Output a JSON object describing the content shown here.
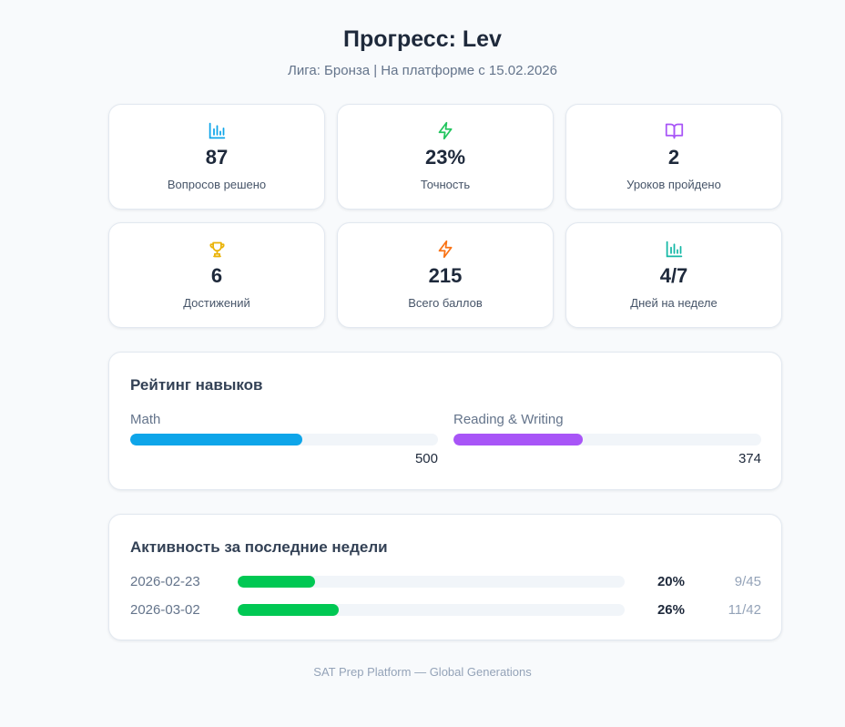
{
  "header": {
    "title": "Прогресс: Lev",
    "subtitle": "Лига: Бронза | На платформе с 15.02.2026"
  },
  "stats": [
    {
      "icon": "bar-chart-icon",
      "value": "87",
      "label": "Вопросов решено",
      "color": "#0ea5e9"
    },
    {
      "icon": "lightning-icon",
      "value": "23%",
      "label": "Точность",
      "color": "#22c55e"
    },
    {
      "icon": "book-icon",
      "value": "2",
      "label": "Уроков пройдено",
      "color": "#a855f7"
    },
    {
      "icon": "trophy-icon",
      "value": "6",
      "label": "Достижений",
      "color": "#eab308"
    },
    {
      "icon": "lightning-icon",
      "value": "215",
      "label": "Всего баллов",
      "color": "#f97316"
    },
    {
      "icon": "bar-chart-icon",
      "value": "4/7",
      "label": "Дней на неделе",
      "color": "#14b8a6"
    }
  ],
  "skills": {
    "title": "Рейтинг навыков",
    "items": [
      {
        "name": "Math",
        "score": "500",
        "fill_fraction": 0.56,
        "color": "#0ea5e9"
      },
      {
        "name": "Reading & Writing",
        "score": "374",
        "fill_fraction": 0.42,
        "color": "#a855f7"
      }
    ]
  },
  "activity": {
    "title": "Активность за последние недели",
    "rows": [
      {
        "date": "2026-02-23",
        "percent": "20%",
        "count": "9/45",
        "fill_fraction": 0.2
      },
      {
        "date": "2026-03-02",
        "percent": "26%",
        "count": "11/42",
        "fill_fraction": 0.26
      }
    ],
    "bar_color": "#00c853"
  },
  "footer": "SAT Prep Platform — Global Generations"
}
